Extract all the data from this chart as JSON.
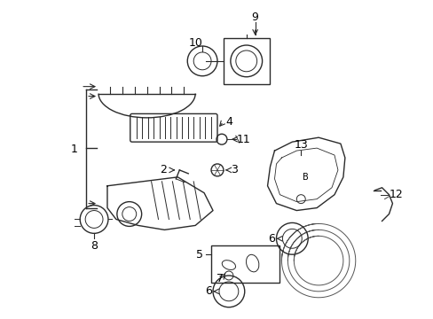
{
  "bg_color": "#ffffff",
  "line_color": "#2a2a2a",
  "label_color": "#000000",
  "fig_width": 4.89,
  "fig_height": 3.6,
  "dpi": 100
}
